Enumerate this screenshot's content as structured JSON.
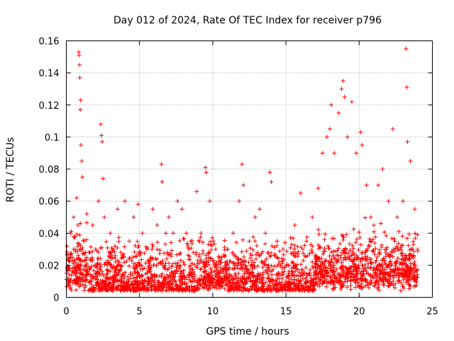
{
  "chart_data": {
    "type": "scatter",
    "title": "Day 012 of 2024, Rate Of TEC Index for receiver p796",
    "xlabel": "GPS time / hours",
    "ylabel": "ROTI / TECUs",
    "xlim": [
      0,
      25
    ],
    "ylim": [
      0,
      0.16
    ],
    "xticks": [
      0,
      5,
      10,
      15,
      20,
      25
    ],
    "xtick_labels": [
      "0",
      "5",
      "10",
      "15",
      "20",
      "25"
    ],
    "yticks": [
      0,
      0.02,
      0.04,
      0.06,
      0.08,
      0.1,
      0.12,
      0.14,
      0.16
    ],
    "ytick_labels": [
      "0",
      "0.02",
      "0.04",
      "0.06",
      "0.08",
      "0.1",
      "0.12",
      "0.14",
      "0.16"
    ],
    "grid": true,
    "marker": "+",
    "series_color": "#ff0000",
    "series": [
      {
        "name": "ROTI",
        "note": "dense cloud of points mostly 0.005-0.04 TECUs across 0-24 h; representative sample incl. outliers",
        "points": [
          [
            0.1,
            0.012
          ],
          [
            0.2,
            0.025
          ],
          [
            0.3,
            0.04
          ],
          [
            0.4,
            0.018
          ],
          [
            0.5,
            0.05
          ],
          [
            0.6,
            0.03
          ],
          [
            0.7,
            0.062
          ],
          [
            0.8,
            0.045
          ],
          [
            0.85,
            0.153
          ],
          [
            0.87,
            0.151
          ],
          [
            0.9,
            0.145
          ],
          [
            0.92,
            0.137
          ],
          [
            0.95,
            0.117
          ],
          [
            0.98,
            0.123
          ],
          [
            1.0,
            0.095
          ],
          [
            1.05,
            0.085
          ],
          [
            1.1,
            0.075
          ],
          [
            1.2,
            0.035
          ],
          [
            1.4,
            0.052
          ],
          [
            1.6,
            0.028
          ],
          [
            1.8,
            0.045
          ],
          [
            2.0,
            0.03
          ],
          [
            2.2,
            0.06
          ],
          [
            2.35,
            0.108
          ],
          [
            2.4,
            0.101
          ],
          [
            2.45,
            0.097
          ],
          [
            2.5,
            0.074
          ],
          [
            2.6,
            0.05
          ],
          [
            2.8,
            0.02
          ],
          [
            3.0,
            0.04
          ],
          [
            3.2,
            0.03
          ],
          [
            3.5,
            0.055
          ],
          [
            3.8,
            0.025
          ],
          [
            4.0,
            0.06
          ],
          [
            4.3,
            0.035
          ],
          [
            4.6,
            0.05
          ],
          [
            4.9,
            0.058
          ],
          [
            5.2,
            0.04
          ],
          [
            5.5,
            0.03
          ],
          [
            5.9,
            0.055
          ],
          [
            6.2,
            0.045
          ],
          [
            6.5,
            0.083
          ],
          [
            6.55,
            0.072
          ],
          [
            6.8,
            0.04
          ],
          [
            7.0,
            0.05
          ],
          [
            7.3,
            0.04
          ],
          [
            7.6,
            0.06
          ],
          [
            7.9,
            0.055
          ],
          [
            8.2,
            0.04
          ],
          [
            8.5,
            0.035
          ],
          [
            8.9,
            0.066
          ],
          [
            9.2,
            0.04
          ],
          [
            9.5,
            0.081
          ],
          [
            9.55,
            0.078
          ],
          [
            9.8,
            0.06
          ],
          [
            10.2,
            0.03
          ],
          [
            10.6,
            0.025
          ],
          [
            11.0,
            0.03
          ],
          [
            11.4,
            0.04
          ],
          [
            11.8,
            0.06
          ],
          [
            12.0,
            0.083
          ],
          [
            12.1,
            0.07
          ],
          [
            12.5,
            0.035
          ],
          [
            12.9,
            0.05
          ],
          [
            13.2,
            0.055
          ],
          [
            13.6,
            0.04
          ],
          [
            13.9,
            0.078
          ],
          [
            14.0,
            0.072
          ],
          [
            14.4,
            0.035
          ],
          [
            14.8,
            0.03
          ],
          [
            15.2,
            0.02
          ],
          [
            15.6,
            0.045
          ],
          [
            16.0,
            0.065
          ],
          [
            16.4,
            0.035
          ],
          [
            16.8,
            0.05
          ],
          [
            17.2,
            0.068
          ],
          [
            17.5,
            0.09
          ],
          [
            17.8,
            0.1
          ],
          [
            18.0,
            0.105
          ],
          [
            18.1,
            0.12
          ],
          [
            18.3,
            0.09
          ],
          [
            18.6,
            0.115
          ],
          [
            18.8,
            0.13
          ],
          [
            18.9,
            0.135
          ],
          [
            19.0,
            0.125
          ],
          [
            19.2,
            0.1
          ],
          [
            19.5,
            0.122
          ],
          [
            19.8,
            0.09
          ],
          [
            20.1,
            0.103
          ],
          [
            20.2,
            0.095
          ],
          [
            20.5,
            0.07
          ],
          [
            20.8,
            0.05
          ],
          [
            21.0,
            0.045
          ],
          [
            21.3,
            0.07
          ],
          [
            21.6,
            0.08
          ],
          [
            22.0,
            0.06
          ],
          [
            22.3,
            0.105
          ],
          [
            22.6,
            0.05
          ],
          [
            23.0,
            0.06
          ],
          [
            23.2,
            0.155
          ],
          [
            23.25,
            0.131
          ],
          [
            23.3,
            0.097
          ],
          [
            23.5,
            0.085
          ],
          [
            23.8,
            0.055
          ],
          [
            24.0,
            0.03
          ]
        ]
      }
    ]
  }
}
